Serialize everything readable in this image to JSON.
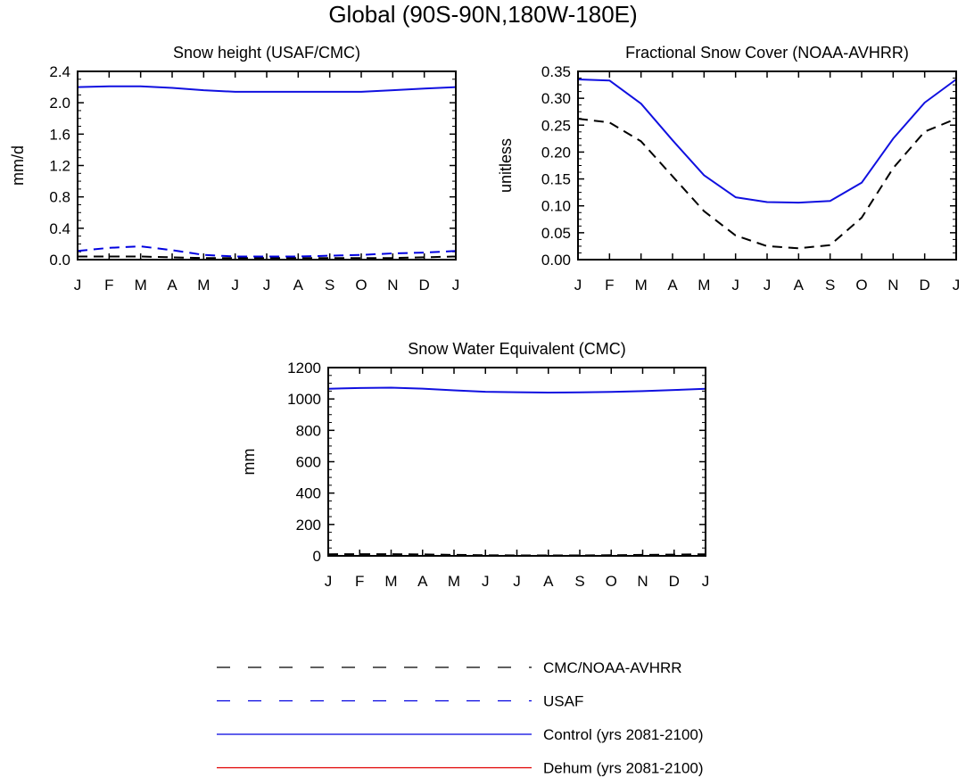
{
  "title": "Global (90S-90N,180W-180E)",
  "months": [
    "J",
    "F",
    "M",
    "A",
    "M",
    "J",
    "J",
    "A",
    "S",
    "O",
    "N",
    "D",
    "J"
  ],
  "legend": [
    {
      "label": "CMC/NOAA-AVHRR",
      "color": "#000000",
      "dash": true
    },
    {
      "label": "USAF",
      "color": "#0000e0",
      "dash": true
    },
    {
      "label": "Control (yrs 2081-2100)",
      "color": "#0000e0",
      "dash": false
    },
    {
      "label": "Dehum (yrs 2081-2100)",
      "color": "#e00000",
      "dash": false
    }
  ],
  "chart_data": [
    {
      "type": "line",
      "title": "Snow height (USAF/CMC)",
      "ylabel": "mm/d",
      "ylim": [
        0,
        2.4
      ],
      "yticks": [
        "0.0",
        "0.4",
        "0.8",
        "1.2",
        "1.6",
        "2.0",
        "2.4"
      ],
      "categories": [
        "J",
        "F",
        "M",
        "A",
        "M",
        "J",
        "J",
        "A",
        "S",
        "O",
        "N",
        "D",
        "J"
      ],
      "series": [
        {
          "name": "CMC/NOAA-AVHRR",
          "color": "#000000",
          "dash": true,
          "values": [
            0.04,
            0.04,
            0.04,
            0.03,
            0.02,
            0.02,
            0.02,
            0.02,
            0.02,
            0.02,
            0.02,
            0.03,
            0.04
          ]
        },
        {
          "name": "USAF",
          "color": "#0000e0",
          "dash": true,
          "values": [
            0.11,
            0.15,
            0.17,
            0.12,
            0.06,
            0.04,
            0.04,
            0.04,
            0.05,
            0.06,
            0.08,
            0.09,
            0.11
          ]
        },
        {
          "name": "Control (yrs 2081-2100)",
          "color": "#1010e0",
          "dash": false,
          "values": [
            2.2,
            2.21,
            2.21,
            2.19,
            2.16,
            2.14,
            2.14,
            2.14,
            2.14,
            2.14,
            2.16,
            2.18,
            2.2
          ]
        },
        {
          "name": "Dehum (yrs 2081-2100)",
          "color": "#e00000",
          "dash": false,
          "values": [
            2.2,
            2.21,
            2.21,
            2.19,
            2.16,
            2.14,
            2.14,
            2.14,
            2.14,
            2.14,
            2.16,
            2.18,
            2.2
          ]
        }
      ]
    },
    {
      "type": "line",
      "title": "Fractional Snow Cover (NOAA-AVHRR)",
      "ylabel": "unitless",
      "ylim": [
        0,
        0.35
      ],
      "yticks": [
        "0.00",
        "0.05",
        "0.10",
        "0.15",
        "0.20",
        "0.25",
        "0.30",
        "0.35"
      ],
      "categories": [
        "J",
        "F",
        "M",
        "A",
        "M",
        "J",
        "J",
        "A",
        "S",
        "O",
        "N",
        "D",
        "J"
      ],
      "series": [
        {
          "name": "CMC/NOAA-AVHRR",
          "color": "#000000",
          "dash": true,
          "values": [
            0.262,
            0.255,
            0.22,
            0.155,
            0.09,
            0.045,
            0.025,
            0.021,
            0.027,
            0.078,
            0.17,
            0.238,
            0.262
          ]
        },
        {
          "name": "Control (yrs 2081-2100)",
          "color": "#1010e0",
          "dash": false,
          "values": [
            0.335,
            0.333,
            0.29,
            0.222,
            0.157,
            0.116,
            0.107,
            0.106,
            0.109,
            0.143,
            0.225,
            0.292,
            0.335
          ]
        },
        {
          "name": "Dehum (yrs 2081-2100)",
          "color": "#e00000",
          "dash": false,
          "values": [
            0.335,
            0.333,
            0.29,
            0.222,
            0.157,
            0.116,
            0.107,
            0.106,
            0.109,
            0.143,
            0.225,
            0.292,
            0.335
          ]
        }
      ]
    },
    {
      "type": "line",
      "title": "Snow Water Equivalent (CMC)",
      "ylabel": "mm",
      "ylim": [
        0,
        1200
      ],
      "yticks": [
        "0",
        "200",
        "400",
        "600",
        "800",
        "1000",
        "1200"
      ],
      "categories": [
        "J",
        "F",
        "M",
        "A",
        "M",
        "J",
        "J",
        "A",
        "S",
        "O",
        "N",
        "D",
        "J"
      ],
      "series": [
        {
          "name": "CMC/NOAA-AVHRR",
          "color": "#000000",
          "dash": true,
          "values": [
            10,
            11,
            11,
            9,
            6,
            4,
            3,
            3,
            3,
            4,
            6,
            8,
            10
          ]
        },
        {
          "name": "Control (yrs 2081-2100)",
          "color": "#1010e0",
          "dash": false,
          "values": [
            1065,
            1070,
            1072,
            1066,
            1055,
            1046,
            1043,
            1041,
            1042,
            1045,
            1050,
            1057,
            1065
          ]
        },
        {
          "name": "Dehum (yrs 2081-2100)",
          "color": "#e00000",
          "dash": false,
          "values": [
            1065,
            1070,
            1072,
            1066,
            1055,
            1046,
            1043,
            1041,
            1042,
            1045,
            1050,
            1057,
            1065
          ]
        }
      ]
    }
  ]
}
